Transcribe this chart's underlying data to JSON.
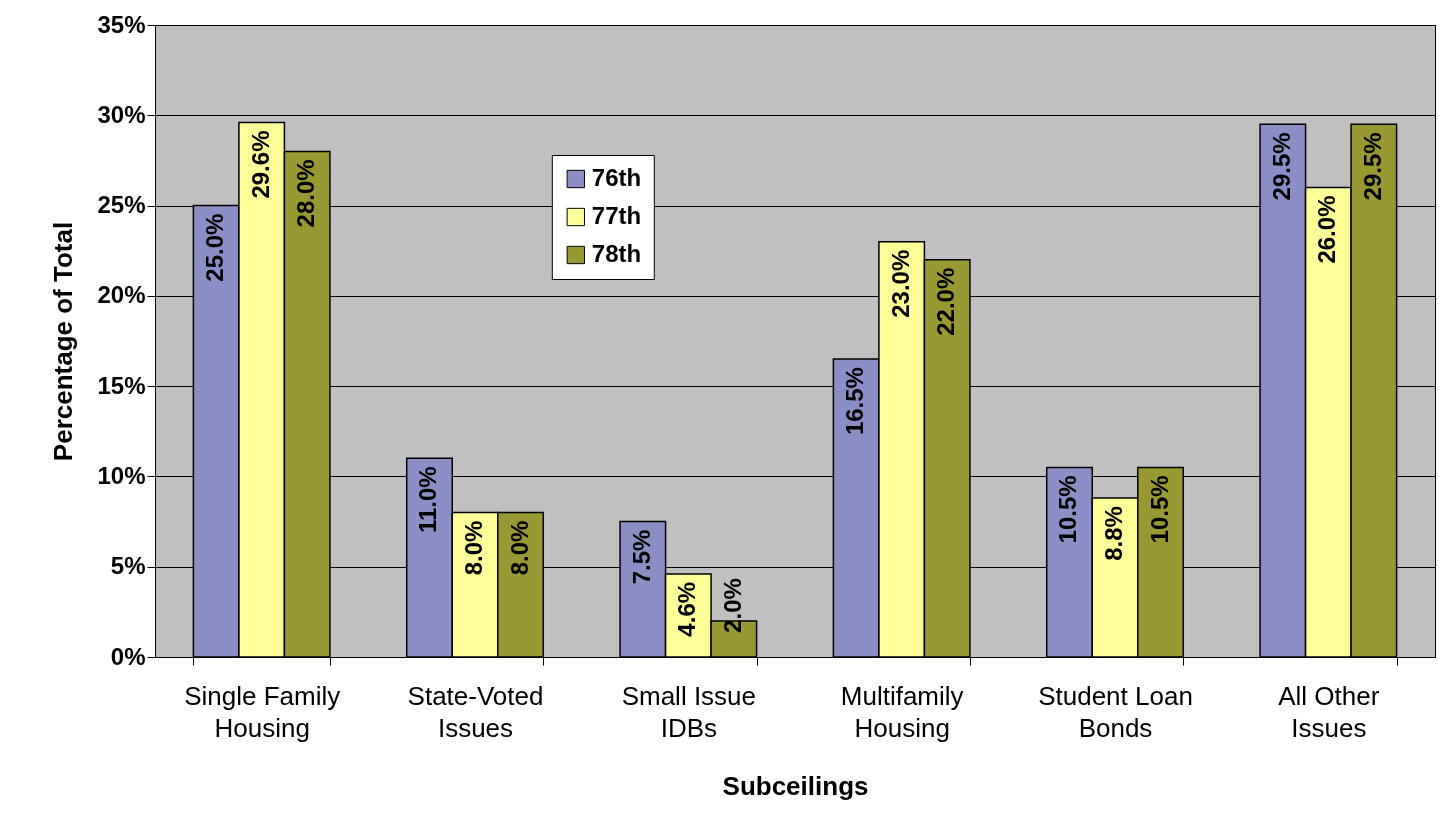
{
  "chart_data": {
    "type": "bar",
    "xlabel": "Subceilings",
    "ylabel": "Percentage of Total",
    "categories": [
      "Single Family Housing",
      "State-Voted Issues",
      "Small Issue IDBs",
      "Multifamily Housing",
      "Student Loan Bonds",
      "All Other Issues"
    ],
    "series": [
      {
        "name": "76th",
        "color": "#8c8fc6",
        "values": [
          25.0,
          11.0,
          7.5,
          16.5,
          10.5,
          29.5
        ],
        "value_labels": [
          "25.0%",
          "11.0%",
          "7.5%",
          "16.5%",
          "10.5%",
          "29.5%"
        ]
      },
      {
        "name": "77th",
        "color": "#ffff99",
        "values": [
          29.6,
          8.0,
          4.6,
          23.0,
          8.8,
          26.0
        ],
        "value_labels": [
          "29.6%",
          "8.0%",
          "4.6%",
          "23.0%",
          "8.8%",
          "26.0%"
        ]
      },
      {
        "name": "78th",
        "color": "#999933",
        "values": [
          28.0,
          8.0,
          2.0,
          22.0,
          10.5,
          29.5
        ],
        "value_labels": [
          "28.0%",
          "8.0%",
          "2.0%",
          "22.0%",
          "10.5%",
          "29.5%"
        ]
      }
    ],
    "ylim": [
      0,
      35
    ],
    "yticks": [
      {
        "value": 0,
        "label": "0%"
      },
      {
        "value": 5,
        "label": "5%"
      },
      {
        "value": 10,
        "label": "10%"
      },
      {
        "value": 15,
        "label": "15%"
      },
      {
        "value": 20,
        "label": "20%"
      },
      {
        "value": 25,
        "label": "25%"
      },
      {
        "value": 30,
        "label": "30%"
      },
      {
        "value": 35,
        "label": "35%"
      }
    ],
    "grid": "y",
    "legend": "top"
  }
}
